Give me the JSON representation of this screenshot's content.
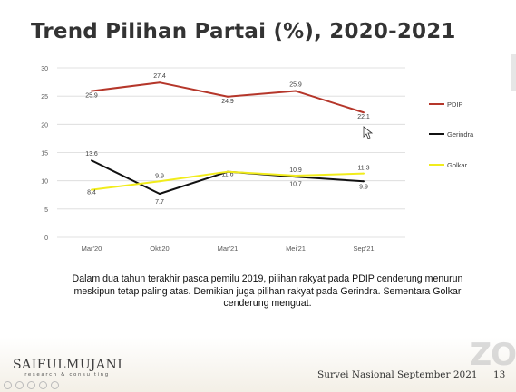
{
  "slide": {
    "title": "Trend Pilihan Partai (%), 2020-2021",
    "caption": "Dalam dua tahun terakhir pasca pemilu 2019, pilihan rakyat pada PDIP cenderung menurun meskipun tetap paling atas. Demikian juga pilihan rakyat pada Gerindra. Sementara Golkar cenderung menguat.",
    "logo_main": "SAIFULMUJANI",
    "logo_sub": "research & consulting",
    "footer_text": "Survei Nasional September 2021",
    "page_number": "13",
    "watermark": "ZO"
  },
  "chart_data": {
    "type": "line",
    "categories": [
      "Mar'20",
      "Okt'20",
      "Mar'21",
      "Mei'21",
      "Sep'21"
    ],
    "ylim": [
      0,
      30
    ],
    "yticks": [
      0,
      5,
      10,
      15,
      20,
      25,
      30
    ],
    "grid": true,
    "legend_position": "right",
    "series": [
      {
        "name": "PDIP",
        "color": "#b5362a",
        "values": [
          25.9,
          27.4,
          24.9,
          25.9,
          22.1
        ],
        "labels": [
          "25.9",
          "27.4",
          "24.9",
          "25.9",
          "22.1"
        ]
      },
      {
        "name": "Gerindra",
        "color": "#111111",
        "values": [
          13.6,
          7.7,
          11.6,
          10.7,
          9.9
        ],
        "labels": [
          "13.6",
          "7.7",
          "11.6",
          "10.7",
          "9.9"
        ]
      },
      {
        "name": "Golkar",
        "color": "#f1ec1c",
        "values": [
          8.4,
          9.9,
          11.6,
          10.9,
          11.3
        ],
        "labels": [
          "8.4",
          "9.9",
          "",
          "10.9",
          "11.3"
        ]
      }
    ]
  }
}
